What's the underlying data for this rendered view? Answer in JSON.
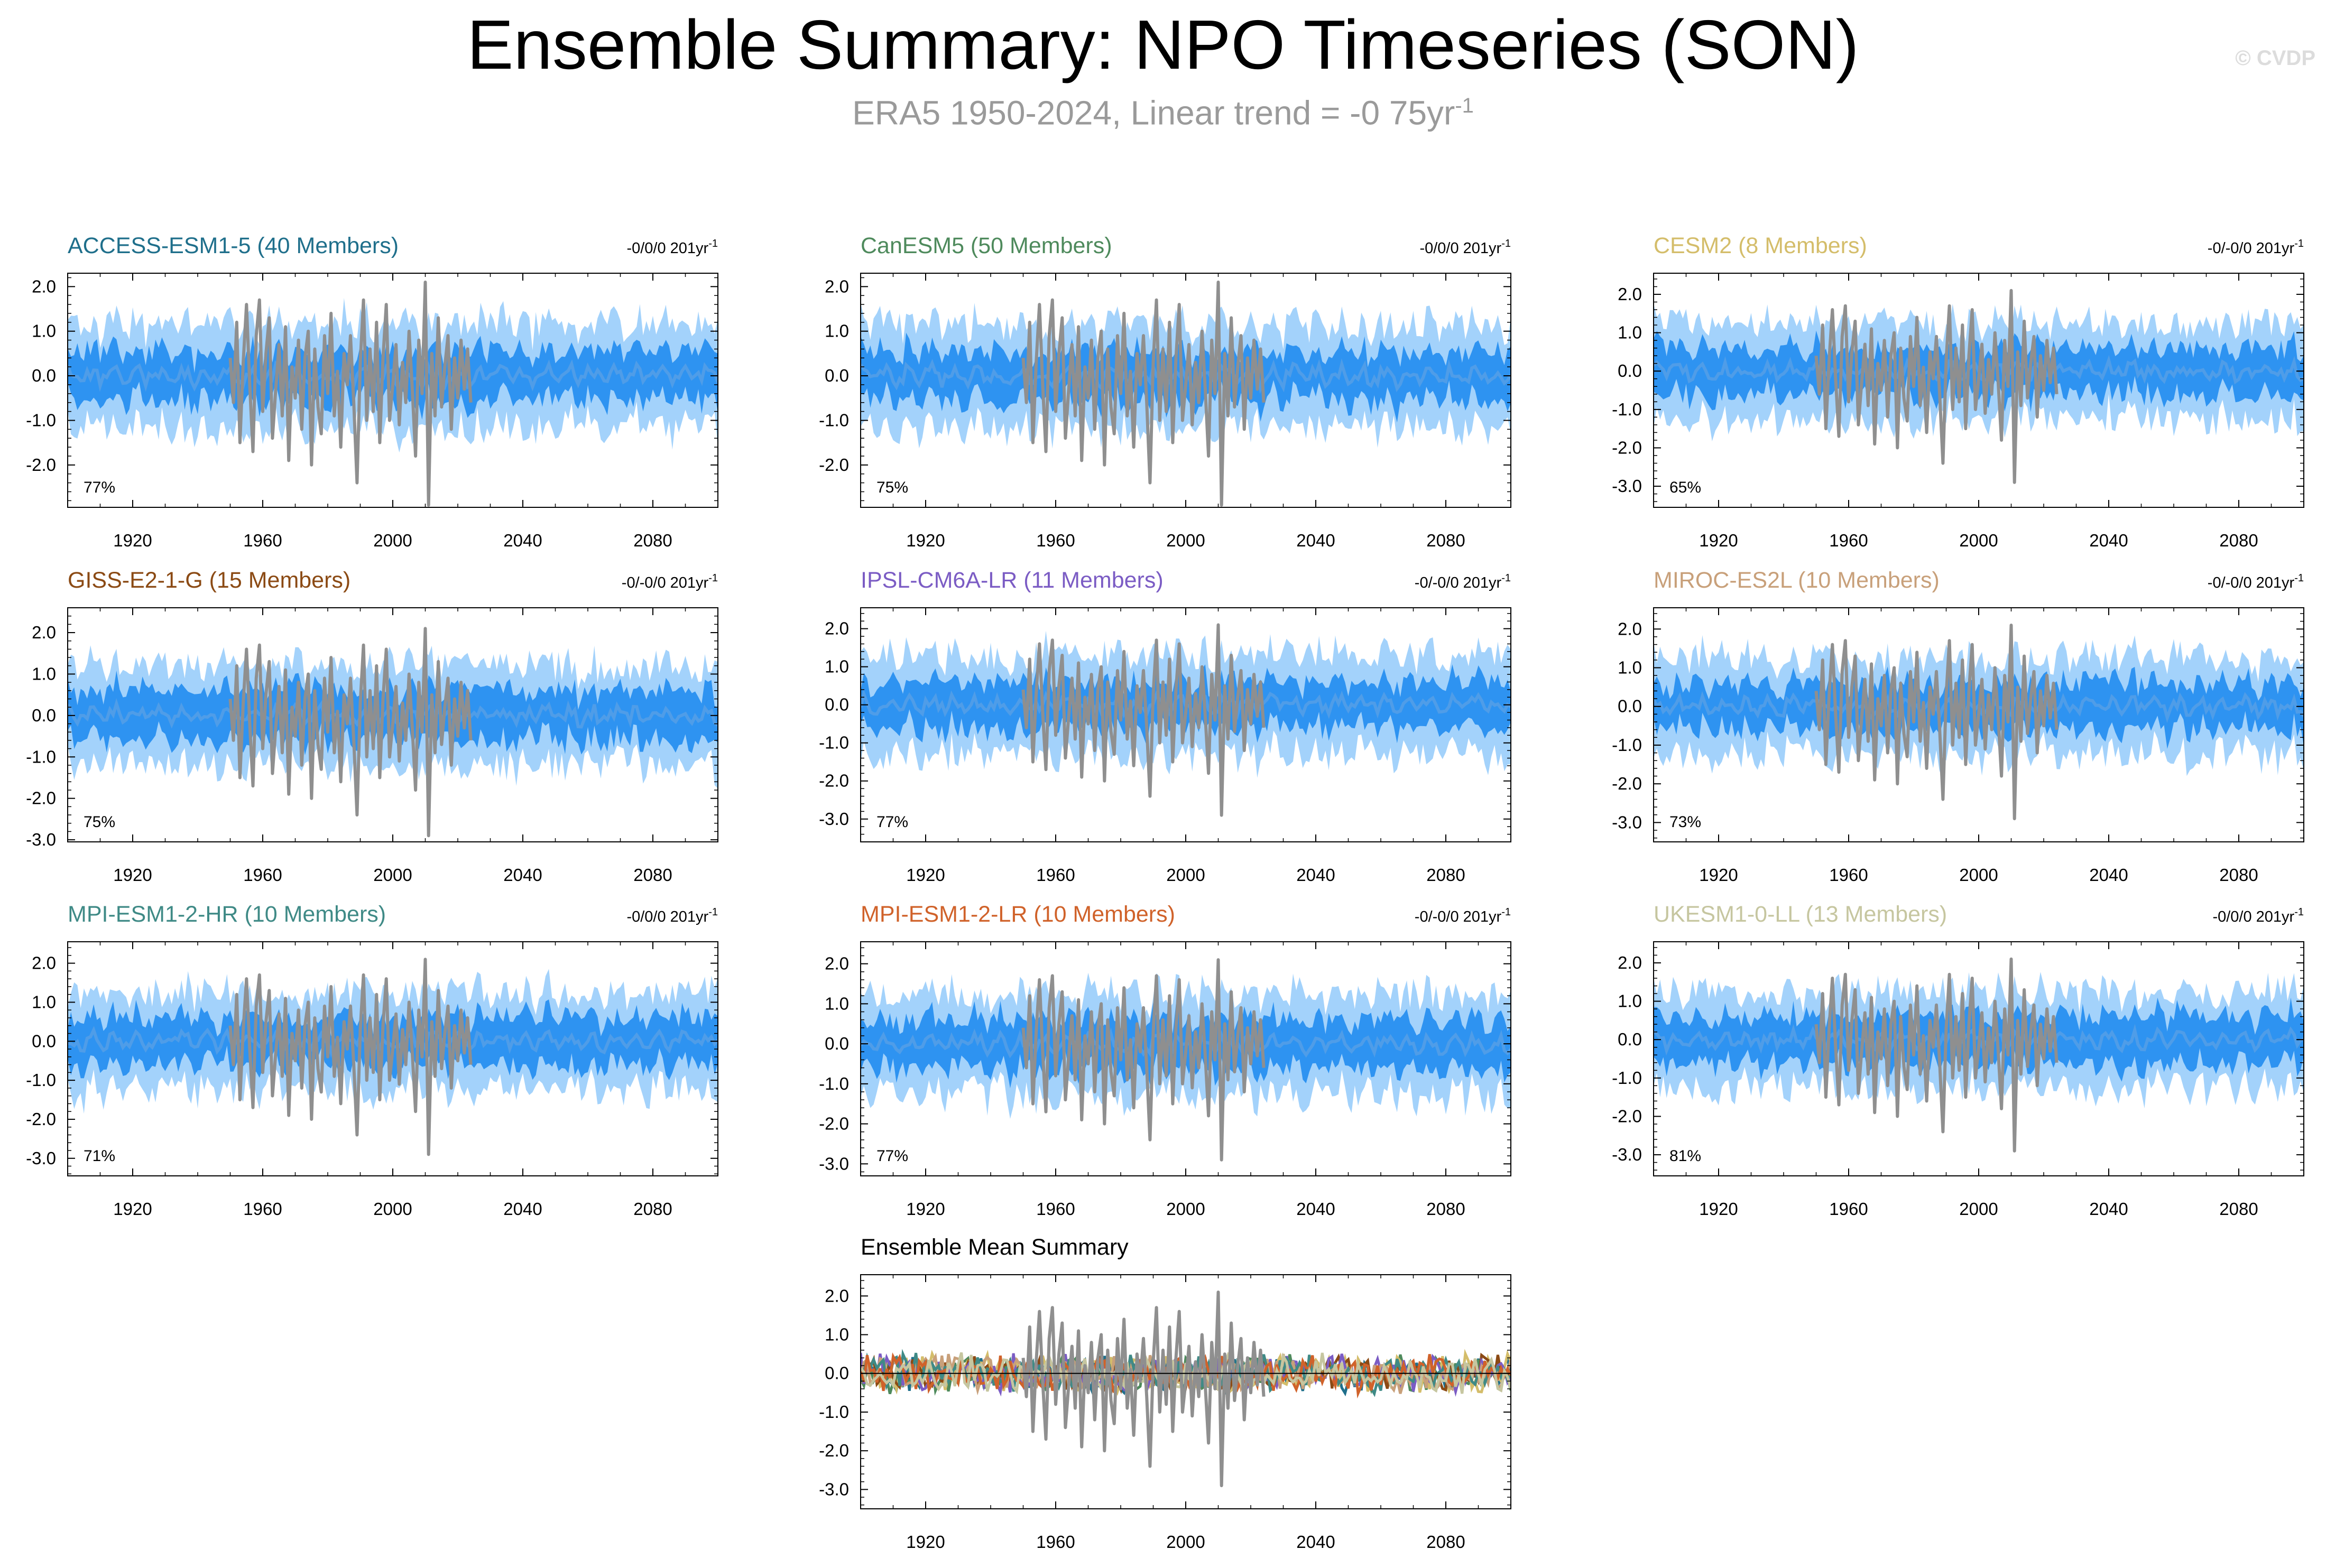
{
  "page": {
    "title": "Ensemble Summary: NPO Timeseries (SON)",
    "subtitle": "ERA5 1950-2024, Linear trend = -0 75yr",
    "subtitle_sup": "-1",
    "watermark": "© CVDP"
  },
  "colors": {
    "band_outer": "#a3d2fb",
    "band_inner": "#2e93f1",
    "ensemble_mean": "#4f9de8",
    "observations": "#8f8f8f"
  },
  "chart_data": [
    {
      "id": "access",
      "type": "line",
      "title": "ACCESS-ESM1-5 (40 Members)",
      "title_color": "#1f6f8b",
      "trend_label": "-0/0/0 201yr",
      "trend_sup": "-1",
      "percent_label": "77%",
      "x_ticks": [
        1920,
        1960,
        2000,
        2040,
        2080
      ],
      "y_ticks": [
        "2.0",
        "1.0",
        "0.0",
        "-1.0",
        "-2.0"
      ],
      "y_tick_values": [
        2,
        1,
        0,
        -1,
        -2
      ],
      "xlim": [
        1900,
        2100
      ],
      "ylim": [
        -2.95,
        2.3
      ],
      "outer_half_width": 1.15,
      "inner_half_width": 0.55,
      "seed": 11
    },
    {
      "id": "canesm",
      "type": "line",
      "title": "CanESM5 (50 Members)",
      "title_color": "#4e8a5c",
      "trend_label": "-0/0/0 201yr",
      "trend_sup": "-1",
      "percent_label": "75%",
      "x_ticks": [
        1920,
        1960,
        2000,
        2040,
        2080
      ],
      "y_ticks": [
        "2.0",
        "1.0",
        "0.0",
        "-1.0",
        "-2.0"
      ],
      "y_tick_values": [
        2,
        1,
        0,
        -1,
        -2
      ],
      "xlim": [
        1900,
        2100
      ],
      "ylim": [
        -2.95,
        2.3
      ],
      "outer_half_width": 1.15,
      "inner_half_width": 0.55,
      "seed": 23
    },
    {
      "id": "cesm",
      "type": "line",
      "title": "CESM2 (8 Members)",
      "title_color": "#d4bd6a",
      "trend_label": "-0/-0/0 201yr",
      "trend_sup": "-1",
      "percent_label": "65%",
      "x_ticks": [
        1920,
        1960,
        2000,
        2040,
        2080
      ],
      "y_ticks": [
        "2.0",
        "1.0",
        "0.0",
        "-1.0",
        "-2.0",
        "-3.0"
      ],
      "y_tick_values": [
        2,
        1,
        0,
        -1,
        -2,
        -3
      ],
      "xlim": [
        1900,
        2100
      ],
      "ylim": [
        -3.55,
        2.55
      ],
      "outer_half_width": 1.25,
      "inner_half_width": 0.6,
      "seed": 37
    },
    {
      "id": "giss",
      "type": "line",
      "title": "GISS-E2-1-G (15 Members)",
      "title_color": "#8b4a14",
      "trend_label": "-0/-0/0 201yr",
      "trend_sup": "-1",
      "percent_label": "75%",
      "x_ticks": [
        1920,
        1960,
        2000,
        2040,
        2080
      ],
      "y_ticks": [
        "2.0",
        "1.0",
        "0.0",
        "-1.0",
        "-2.0",
        "-3.0"
      ],
      "y_tick_values": [
        2,
        1,
        0,
        -1,
        -2,
        -3
      ],
      "xlim": [
        1900,
        2100
      ],
      "ylim": [
        -3.05,
        2.6
      ],
      "outer_half_width": 1.2,
      "inner_half_width": 0.6,
      "seed": 41
    },
    {
      "id": "ipsl",
      "type": "line",
      "title": "IPSL-CM6A-LR (11 Members)",
      "title_color": "#7b5cc4",
      "trend_label": "-0/-0/0 201yr",
      "trend_sup": "-1",
      "percent_label": "77%",
      "x_ticks": [
        1920,
        1960,
        2000,
        2040,
        2080
      ],
      "y_ticks": [
        "2.0",
        "1.0",
        "0.0",
        "-1.0",
        "-2.0",
        "-3.0"
      ],
      "y_tick_values": [
        2,
        1,
        0,
        -1,
        -2,
        -3
      ],
      "xlim": [
        1900,
        2100
      ],
      "ylim": [
        -3.6,
        2.55
      ],
      "outer_half_width": 1.3,
      "inner_half_width": 0.6,
      "seed": 53
    },
    {
      "id": "miroc",
      "type": "line",
      "title": "MIROC-ES2L (10 Members)",
      "title_color": "#c8a07a",
      "trend_label": "-0/-0/0 201yr",
      "trend_sup": "-1",
      "percent_label": "73%",
      "x_ticks": [
        1920,
        1960,
        2000,
        2040,
        2080
      ],
      "y_ticks": [
        "2.0",
        "1.0",
        "0.0",
        "-1.0",
        "-2.0",
        "-3.0"
      ],
      "y_tick_values": [
        2,
        1,
        0,
        -1,
        -2,
        -3
      ],
      "xlim": [
        1900,
        2100
      ],
      "ylim": [
        -3.5,
        2.55
      ],
      "outer_half_width": 1.25,
      "inner_half_width": 0.6,
      "seed": 67
    },
    {
      "id": "mpihr",
      "type": "line",
      "title": "MPI-ESM1-2-HR (10 Members)",
      "title_color": "#3f8a86",
      "trend_label": "-0/0/0 201yr",
      "trend_sup": "-1",
      "percent_label": "71%",
      "x_ticks": [
        1920,
        1960,
        2000,
        2040,
        2080
      ],
      "y_ticks": [
        "2.0",
        "1.0",
        "0.0",
        "-1.0",
        "-2.0",
        "-3.0"
      ],
      "y_tick_values": [
        2,
        1,
        0,
        -1,
        -2,
        -3
      ],
      "xlim": [
        1900,
        2100
      ],
      "ylim": [
        -3.45,
        2.55
      ],
      "outer_half_width": 1.25,
      "inner_half_width": 0.6,
      "seed": 71
    },
    {
      "id": "mpilr",
      "type": "line",
      "title": "MPI-ESM1-2-LR (10 Members)",
      "title_color": "#d0622a",
      "trend_label": "-0/-0/0 201yr",
      "trend_sup": "-1",
      "percent_label": "77%",
      "x_ticks": [
        1920,
        1960,
        2000,
        2040,
        2080
      ],
      "y_ticks": [
        "2.0",
        "1.0",
        "0.0",
        "-1.0",
        "-2.0",
        "-3.0"
      ],
      "y_tick_values": [
        2,
        1,
        0,
        -1,
        -2,
        -3
      ],
      "xlim": [
        1900,
        2100
      ],
      "ylim": [
        -3.3,
        2.55
      ],
      "outer_half_width": 1.25,
      "inner_half_width": 0.6,
      "seed": 83
    },
    {
      "id": "ukesm",
      "type": "line",
      "title": "UKESM1-0-LL (13 Members)",
      "title_color": "#c6c6a0",
      "trend_label": "-0/0/0 201yr",
      "trend_sup": "-1",
      "percent_label": "81%",
      "x_ticks": [
        1920,
        1960,
        2000,
        2040,
        2080
      ],
      "y_ticks": [
        "2.0",
        "1.0",
        "0.0",
        "-1.0",
        "-2.0",
        "-3.0"
      ],
      "y_tick_values": [
        2,
        1,
        0,
        -1,
        -2,
        -3
      ],
      "xlim": [
        1900,
        2100
      ],
      "ylim": [
        -3.55,
        2.55
      ],
      "outer_half_width": 1.25,
      "inner_half_width": 0.6,
      "seed": 97
    },
    {
      "id": "summary",
      "type": "line",
      "title": "Ensemble Mean Summary",
      "title_color": "#000000",
      "x_ticks": [
        1920,
        1960,
        2000,
        2040,
        2080
      ],
      "y_ticks": [
        "2.0",
        "1.0",
        "0.0",
        "-1.0",
        "-2.0",
        "-3.0"
      ],
      "y_tick_values": [
        2,
        1,
        0,
        -1,
        -2,
        -3
      ],
      "xlim": [
        1900,
        2100
      ],
      "ylim": [
        -3.5,
        2.55
      ],
      "series": [
        {
          "name": "ACCESS-ESM1-5",
          "color": "#1f6f8b"
        },
        {
          "name": "CanESM5",
          "color": "#4e8a5c"
        },
        {
          "name": "CESM2",
          "color": "#d4bd6a"
        },
        {
          "name": "GISS-E2-1-G",
          "color": "#8b4a14"
        },
        {
          "name": "IPSL-CM6A-LR",
          "color": "#7b5cc4"
        },
        {
          "name": "MIROC-ES2L",
          "color": "#c8a07a"
        },
        {
          "name": "MPI-ESM1-2-HR",
          "color": "#3f8a86"
        },
        {
          "name": "MPI-ESM1-2-LR",
          "color": "#d0622a"
        },
        {
          "name": "UKESM1-0-LL",
          "color": "#c6c6a0"
        }
      ]
    }
  ],
  "observations": {
    "name": "ERA5",
    "years": [
      1950,
      1951,
      1952,
      1953,
      1954,
      1955,
      1956,
      1957,
      1958,
      1959,
      1960,
      1961,
      1962,
      1963,
      1964,
      1965,
      1966,
      1967,
      1968,
      1969,
      1970,
      1971,
      1972,
      1973,
      1974,
      1975,
      1976,
      1977,
      1978,
      1979,
      1980,
      1981,
      1982,
      1983,
      1984,
      1985,
      1986,
      1987,
      1988,
      1989,
      1990,
      1991,
      1992,
      1993,
      1994,
      1995,
      1996,
      1997,
      1998,
      1999,
      2000,
      2001,
      2002,
      2003,
      2004,
      2005,
      2006,
      2007,
      2008,
      2009,
      2010,
      2011,
      2012,
      2013,
      2014,
      2015,
      2016,
      2017,
      2018,
      2019,
      2020,
      2021,
      2022,
      2023,
      2024
    ],
    "values": [
      0.4,
      -0.6,
      1.2,
      -1.5,
      0.3,
      1.6,
      -0.2,
      -1.7,
      0.9,
      1.7,
      -0.8,
      0.5,
      1.3,
      -1.4,
      -0.3,
      0.7,
      -0.9,
      1.1,
      -1.9,
      0.2,
      -0.5,
      0.8,
      -1.2,
      0.4,
      1.0,
      -2.0,
      0.6,
      -0.7,
      -1.3,
      0.9,
      -0.4,
      1.4,
      -0.9,
      0.1,
      -1.6,
      0.5,
      -0.2,
      0.9,
      -0.6,
      -2.4,
      0.3,
      1.7,
      -1.0,
      0.6,
      -0.8,
      1.2,
      -1.5,
      0.4,
      1.6,
      -1.0,
      -0.2,
      0.7,
      -1.1,
      0.3,
      -0.6,
      1.0,
      -0.3,
      -1.8,
      0.8,
      -0.4,
      2.1,
      -2.9,
      0.5,
      -0.9,
      1.3,
      -0.7,
      0.2,
      0.9,
      -1.2,
      0.4,
      -0.5,
      0.8,
      -0.3,
      0.6,
      -0.6
    ]
  }
}
